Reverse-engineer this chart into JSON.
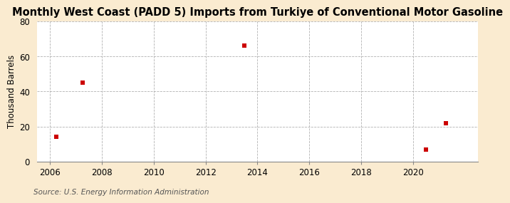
{
  "title": "Monthly West Coast (PADD 5) Imports from Turkiye of Conventional Motor Gasoline",
  "ylabel": "Thousand Barrels",
  "source": "Source: U.S. Energy Information Administration",
  "x_values": [
    2006.25,
    2007.25,
    2013.5,
    2020.5,
    2021.25
  ],
  "y_values": [
    14,
    45,
    66,
    7,
    22
  ],
  "xlim": [
    2005.5,
    2022.5
  ],
  "ylim": [
    0,
    80
  ],
  "xticks": [
    2006,
    2008,
    2010,
    2012,
    2014,
    2016,
    2018,
    2020
  ],
  "yticks": [
    0,
    20,
    40,
    60,
    80
  ],
  "marker_color": "#cc0000",
  "marker_size": 4,
  "background_color": "#faebd0",
  "plot_bg_color": "#ffffff",
  "grid_color": "#aaaaaa",
  "title_fontsize": 10.5,
  "label_fontsize": 8.5,
  "tick_fontsize": 8.5,
  "source_fontsize": 7.5
}
